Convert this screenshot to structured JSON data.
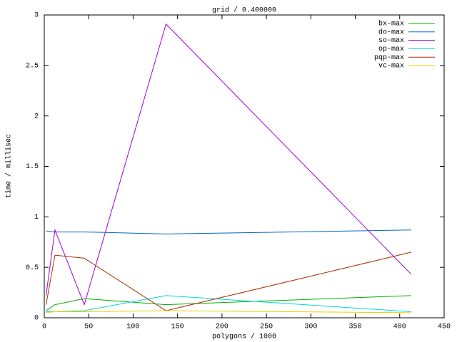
{
  "chart_data": {
    "type": "line",
    "title": "grid / 0.400000",
    "x_label": "polygons / 1000",
    "y_label": "time / millisec",
    "x": [
      2,
      12,
      45,
      137,
      413
    ],
    "series": [
      {
        "name": "bx-max",
        "color": "#00b000",
        "values": [
          0.07,
          0.13,
          0.19,
          0.13,
          0.22
        ]
      },
      {
        "name": "do-max",
        "color": "#0066cc",
        "values": [
          0.86,
          0.85,
          0.85,
          0.83,
          0.87
        ]
      },
      {
        "name": "so-max",
        "color": "#a000d8",
        "values": [
          0.22,
          0.87,
          0.13,
          2.91,
          0.43
        ]
      },
      {
        "name": "op-max",
        "color": "#00d8d8",
        "values": [
          0.06,
          0.06,
          0.07,
          0.22,
          0.06
        ]
      },
      {
        "name": "pqp-max",
        "color": "#a83000",
        "values": [
          0.13,
          0.62,
          0.59,
          0.07,
          0.65
        ]
      },
      {
        "name": "vc-max",
        "color": "#e8d000",
        "values": [
          0.05,
          0.06,
          0.06,
          0.07,
          0.05
        ]
      }
    ],
    "xlim": [
      0,
      450
    ],
    "xticks": [
      0,
      50,
      100,
      150,
      200,
      250,
      300,
      350,
      400,
      450
    ],
    "ylim": [
      0,
      3
    ],
    "yticks": [
      0,
      0.5,
      1,
      1.5,
      2,
      2.5,
      3
    ],
    "grid": false,
    "legend": "top-right"
  }
}
